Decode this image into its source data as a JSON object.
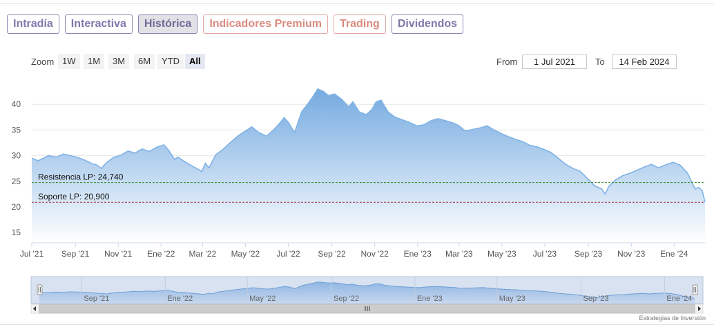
{
  "tabs": [
    {
      "label": "Intradía",
      "state": "normal"
    },
    {
      "label": "Interactiva",
      "state": "normal"
    },
    {
      "label": "Histórica",
      "state": "active"
    },
    {
      "label": "Indicadores Premium",
      "state": "premium"
    },
    {
      "label": "Trading",
      "state": "premium"
    },
    {
      "label": "Dividendos",
      "state": "normal"
    }
  ],
  "zoom": {
    "label": "Zoom",
    "buttons": [
      "1W",
      "1M",
      "3M",
      "6M",
      "YTD",
      "All"
    ],
    "active": "All"
  },
  "range": {
    "from_label": "From",
    "from_value": "1 Jul 2021",
    "to_label": "To",
    "to_value": "14 Feb 2024"
  },
  "colors": {
    "line": "#7fb2e5",
    "area_top": "#6ea6df",
    "area_bottom": "#ffffff",
    "resistance": "#2f8a2f",
    "support": "#a03040",
    "tab_border": "#8a86b3",
    "premium": "#d98b80"
  },
  "credit": "Estrategias de Inversión",
  "chart_data": {
    "type": "area",
    "title": "",
    "xlabel": "",
    "ylabel": "",
    "ylim": [
      13,
      45
    ],
    "yticks": [
      15,
      20,
      25,
      30,
      35,
      40
    ],
    "grid": true,
    "xlim": [
      "2021-07-01",
      "2024-02-14"
    ],
    "xticks": [
      {
        "label": "Jul '21",
        "date": "2021-07-01"
      },
      {
        "label": "Sep '21",
        "date": "2021-09-01"
      },
      {
        "label": "Nov '21",
        "date": "2021-11-01"
      },
      {
        "label": "Ene '22",
        "date": "2022-01-01"
      },
      {
        "label": "Mar '22",
        "date": "2022-03-01"
      },
      {
        "label": "May '22",
        "date": "2022-05-01"
      },
      {
        "label": "Jul '22",
        "date": "2022-07-01"
      },
      {
        "label": "Sep '22",
        "date": "2022-09-01"
      },
      {
        "label": "Nov '22",
        "date": "2022-11-01"
      },
      {
        "label": "Ene '23",
        "date": "2023-01-01"
      },
      {
        "label": "Mar '23",
        "date": "2023-03-01"
      },
      {
        "label": "May '23",
        "date": "2023-05-01"
      },
      {
        "label": "Jul '23",
        "date": "2023-07-01"
      },
      {
        "label": "Sep '23",
        "date": "2023-09-01"
      },
      {
        "label": "Nov '23",
        "date": "2023-11-01"
      },
      {
        "label": "Ene '24",
        "date": "2024-01-01"
      }
    ],
    "series": [
      {
        "x": [
          "2021-07-01",
          "2021-07-10",
          "2021-07-25",
          "2021-08-05",
          "2021-08-15",
          "2021-08-25",
          "2021-09-05",
          "2021-09-15",
          "2021-09-25",
          "2021-10-01",
          "2021-10-08",
          "2021-10-15",
          "2021-10-25",
          "2021-11-05",
          "2021-11-15",
          "2021-11-25",
          "2021-12-05",
          "2021-12-15",
          "2021-12-25",
          "2022-01-05",
          "2022-01-12",
          "2022-01-20",
          "2022-01-25",
          "2022-02-05",
          "2022-02-15",
          "2022-02-22",
          "2022-02-28",
          "2022-03-05",
          "2022-03-10",
          "2022-03-20",
          "2022-03-30",
          "2022-04-10",
          "2022-04-20",
          "2022-05-01",
          "2022-05-10",
          "2022-05-20",
          "2022-05-31",
          "2022-06-10",
          "2022-06-20",
          "2022-06-25",
          "2022-07-01",
          "2022-07-10",
          "2022-07-20",
          "2022-07-31",
          "2022-08-05",
          "2022-08-12",
          "2022-08-20",
          "2022-08-27",
          "2022-09-05",
          "2022-09-15",
          "2022-09-25",
          "2022-10-01",
          "2022-10-10",
          "2022-10-20",
          "2022-10-28",
          "2022-11-03",
          "2022-11-10",
          "2022-11-20",
          "2022-11-30",
          "2022-12-10",
          "2022-12-20",
          "2022-12-31",
          "2023-01-10",
          "2023-01-20",
          "2023-01-30",
          "2023-02-10",
          "2023-02-20",
          "2023-02-28",
          "2023-03-10",
          "2023-03-20",
          "2023-03-31",
          "2023-04-10",
          "2023-04-20",
          "2023-04-30",
          "2023-05-10",
          "2023-05-20",
          "2023-05-31",
          "2023-06-10",
          "2023-06-20",
          "2023-06-30",
          "2023-07-10",
          "2023-07-20",
          "2023-07-31",
          "2023-08-10",
          "2023-08-20",
          "2023-08-31",
          "2023-09-10",
          "2023-09-20",
          "2023-09-25",
          "2023-09-30",
          "2023-10-10",
          "2023-10-20",
          "2023-10-31",
          "2023-11-10",
          "2023-11-20",
          "2023-11-30",
          "2023-12-10",
          "2023-12-20",
          "2023-12-31",
          "2024-01-10",
          "2024-01-20",
          "2024-01-25",
          "2024-01-31",
          "2024-02-05",
          "2024-02-10",
          "2024-02-14"
        ],
        "values": [
          29.5,
          29.0,
          30.0,
          29.7,
          30.3,
          30.0,
          29.6,
          29.1,
          28.4,
          28.2,
          27.5,
          28.6,
          29.6,
          30.1,
          30.9,
          30.5,
          31.3,
          30.8,
          31.6,
          32.1,
          31.0,
          29.3,
          29.7,
          28.7,
          27.9,
          27.4,
          26.9,
          28.5,
          27.6,
          30.2,
          31.2,
          32.6,
          33.8,
          34.8,
          35.6,
          34.5,
          33.8,
          35.0,
          36.5,
          37.4,
          36.5,
          34.5,
          38.5,
          40.5,
          41.5,
          43.0,
          42.5,
          41.7,
          42.0,
          41.0,
          39.5,
          40.5,
          38.5,
          38.0,
          39.0,
          40.5,
          40.8,
          38.5,
          37.5,
          37.0,
          36.5,
          35.8,
          36.0,
          36.8,
          37.2,
          36.8,
          36.4,
          35.9,
          34.8,
          35.1,
          35.4,
          35.8,
          35.0,
          34.3,
          33.7,
          33.2,
          32.7,
          32.0,
          31.7,
          31.2,
          30.6,
          29.5,
          28.3,
          27.5,
          27.0,
          25.5,
          24.1,
          23.5,
          22.5,
          24.0,
          25.3,
          26.1,
          26.6,
          27.2,
          27.8,
          28.3,
          27.6,
          28.2,
          28.7,
          28.1,
          26.6,
          25.2,
          23.5,
          23.8,
          23.2,
          20.9
        ]
      }
    ],
    "annotations": [
      {
        "label": "Resistencia LP: 24,740",
        "value": 24.74,
        "style": "dashed",
        "color": "#2f8a2f"
      },
      {
        "label": "Soporte LP: 20,900",
        "value": 20.9,
        "style": "dashed",
        "color": "#a03040"
      }
    ],
    "navigator": {
      "xticks": [
        "Sep '21",
        "Ene '22",
        "May '22",
        "Sep '22",
        "Ene '23",
        "May '23",
        "Sep '23",
        "Ene '24"
      ],
      "xtick_dates": [
        "2021-09-01",
        "2022-01-01",
        "2022-05-01",
        "2022-09-01",
        "2023-01-01",
        "2023-05-01",
        "2023-09-01",
        "2024-01-01"
      ]
    }
  }
}
